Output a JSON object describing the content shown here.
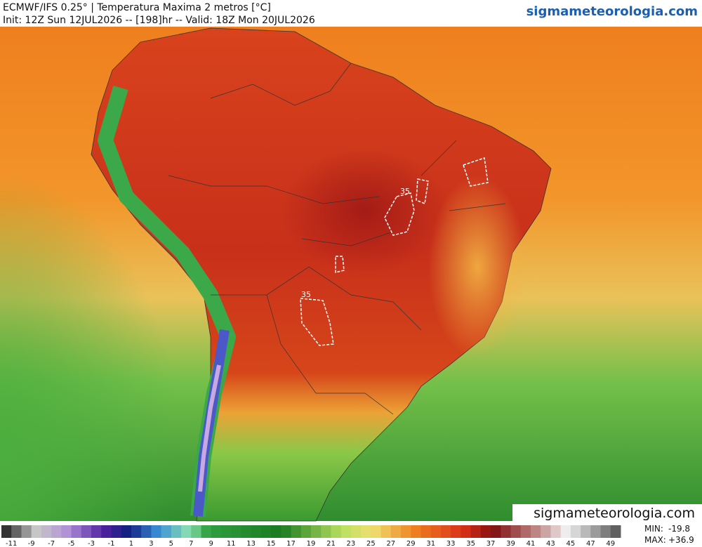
{
  "header": {
    "title": "ECMWF/IFS 0.25° | Temperatura Maxima 2 metros [°C]",
    "init": "Init: 12Z Sun 12JUL2026 -- [198]hr -- Valid: 18Z Mon 20JUL2026",
    "site": "sigmameteorologia.com"
  },
  "watermark": "sigmameteorologia.com",
  "contours": [
    {
      "label": "35"
    },
    {
      "label": "35"
    }
  ],
  "colorbar": {
    "labels": [
      -11,
      -9,
      -7,
      -5,
      -3,
      -1,
      1,
      3,
      5,
      7,
      9,
      11,
      13,
      15,
      17,
      19,
      21,
      23,
      25,
      27,
      29,
      31,
      33,
      35,
      37,
      39,
      41,
      43,
      45,
      47,
      49
    ]
  },
  "stats": {
    "min_label": "MIN:",
    "min_value": "-19.8",
    "max_label": "MAX:",
    "max_value": "+36.9"
  }
}
